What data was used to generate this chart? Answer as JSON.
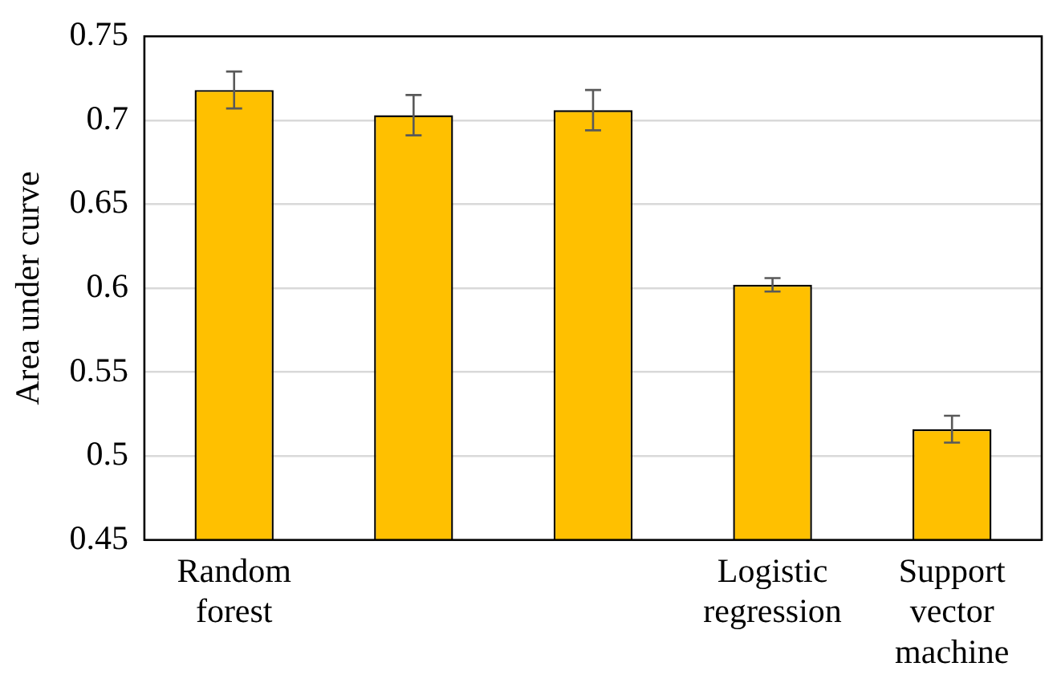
{
  "chart_data": {
    "type": "bar",
    "ylabel": "Area under curve",
    "categories": [
      "Random forest",
      null,
      null,
      "Logistic regression",
      "Support vector machine"
    ],
    "values": [
      0.718,
      0.703,
      0.706,
      0.602,
      0.516
    ],
    "errors": [
      0.011,
      0.012,
      0.012,
      0.004,
      0.008
    ],
    "color": "#ffc000",
    "ylim": [
      0.45,
      0.75
    ],
    "yticks": [
      0.45,
      0.5,
      0.55,
      0.6,
      0.65,
      0.7,
      0.75
    ],
    "grid": "y",
    "legend": false
  }
}
